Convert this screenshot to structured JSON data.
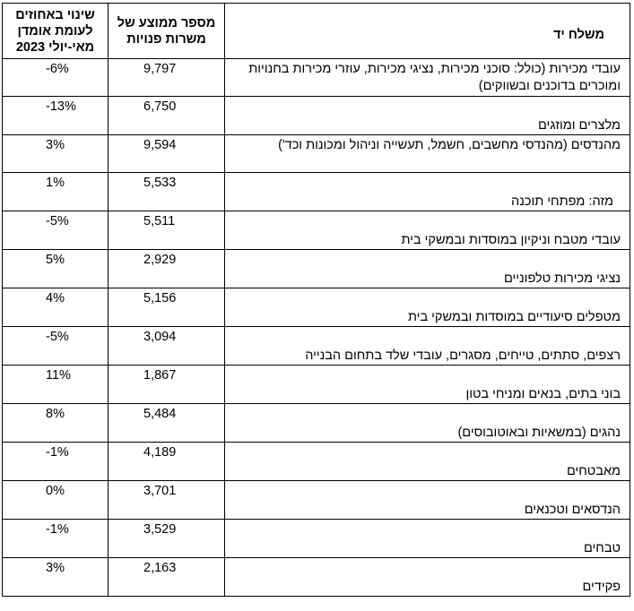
{
  "table": {
    "headers": {
      "change": "שינוי באחוזים לעומת אומדן מאי-יולי 2023",
      "avg_open_positions": "מספר ממוצע של משרות פנויות",
      "occupation": "משלח יד"
    },
    "rows": [
      {
        "change": "-6%",
        "avg": "9,797",
        "occupation": "עובדי מכירות (כולל: סוכני מכירות, נציגי מכירות, עוזרי מכירות בחנויות ומוכרים בדוכנים ובשווקים)"
      },
      {
        "change": "-13%",
        "avg": "6,750",
        "occupation": "מלצרים ומוזגים"
      },
      {
        "change": "3%",
        "avg": "9,594",
        "occupation": "מהנדסים (מהנדסי מחשבים, חשמל, תעשייה וניהול ומכונות וכד')"
      },
      {
        "change": "1%",
        "avg": "5,533",
        "occupation": "מזה: מפתחי תוכנה"
      },
      {
        "change": "-5%",
        "avg": "5,511",
        "occupation": "עובדי מטבח וניקיון במוסדות ובמשקי בית"
      },
      {
        "change": "5%",
        "avg": "2,929",
        "occupation": "נציגי מכירות טלפוניים"
      },
      {
        "change": "4%",
        "avg": "5,156",
        "occupation": "מטפלים סיעודיים במוסדות ובמשקי בית"
      },
      {
        "change": "-5%",
        "avg": "3,094",
        "occupation": "רצפים, סתתים, טייחים, מסגרים, עובדי שלד בתחום הבנייה"
      },
      {
        "change": "11%",
        "avg": "1,867",
        "occupation": "בוני בתים, בנאים ומניחי בטון"
      },
      {
        "change": "8%",
        "avg": "5,484",
        "occupation": "נהגים (במשאיות ובאוטובוסים)"
      },
      {
        "change": "-1%",
        "avg": "4,189",
        "occupation": "מאבטחים"
      },
      {
        "change": "0%",
        "avg": "3,701",
        "occupation": "הנדסאים וטכנאים"
      },
      {
        "change": "-1%",
        "avg": "3,529",
        "occupation": "טבחים"
      },
      {
        "change": "3%",
        "avg": "2,163",
        "occupation": "פקידים"
      }
    ]
  }
}
